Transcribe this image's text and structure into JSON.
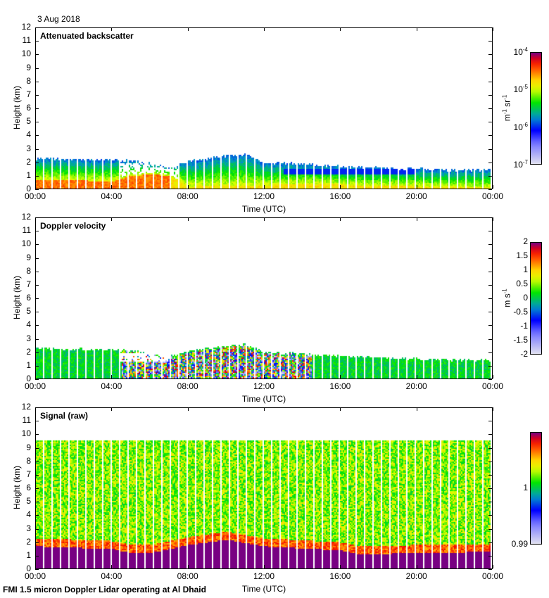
{
  "header": {
    "date": "3 Aug 2018"
  },
  "footer": {
    "caption": "FMI 1.5 micron Doppler Lidar operating at Al Dhaid"
  },
  "chart_data": [
    {
      "type": "heatmap",
      "title": "Attenuated backscatter",
      "xlabel": "Time (UTC)",
      "ylabel": "Height (km)",
      "xticks": [
        "00:00",
        "04:00",
        "08:00",
        "12:00",
        "16:00",
        "20:00",
        "00:00"
      ],
      "yticks": [
        "0",
        "1",
        "2",
        "3",
        "4",
        "5",
        "6",
        "7",
        "8",
        "9",
        "10",
        "11",
        "12"
      ],
      "ylim": [
        0,
        12
      ],
      "xlim_hours": [
        0,
        24
      ],
      "colorbar": {
        "unit_html": "m<sup>-1</sup> sr<sup>-1</sup>",
        "unit": "m-1 sr-1",
        "scale": "log",
        "range": [
          1e-07,
          0.0001
        ],
        "ticks": [
          "10-4",
          "10-5",
          "10-6",
          "10-7"
        ],
        "ticks_html": [
          "10<sup>-4</sup>",
          "10<sup>-5</sup>",
          "10<sup>-6</sup>",
          "10<sup>-7</sup>"
        ]
      },
      "layer_top_km": [
        [
          0,
          2.3
        ],
        [
          4,
          2.2
        ],
        [
          5,
          2.1
        ],
        [
          6,
          1.9
        ],
        [
          7,
          1.7
        ],
        [
          8,
          2.1
        ],
        [
          10,
          2.5
        ],
        [
          11,
          2.6
        ],
        [
          12,
          2.0
        ],
        [
          14,
          1.9
        ],
        [
          16,
          1.7
        ],
        [
          18,
          1.6
        ],
        [
          20,
          1.5
        ],
        [
          24,
          1.4
        ]
      ],
      "strong_layer_top_km": [
        [
          0,
          0.7
        ],
        [
          4,
          0.6
        ],
        [
          5,
          1.0
        ],
        [
          6,
          1.1
        ],
        [
          7,
          1.0
        ],
        [
          8,
          0.2
        ],
        [
          12,
          0.3
        ],
        [
          15,
          0.4
        ],
        [
          16.5,
          0.3
        ],
        [
          24,
          0.1
        ]
      ]
    },
    {
      "type": "heatmap",
      "title": "Doppler velocity",
      "xlabel": "Time (UTC)",
      "ylabel": "Height (km)",
      "xticks": [
        "00:00",
        "04:00",
        "08:00",
        "12:00",
        "16:00",
        "20:00",
        "00:00"
      ],
      "yticks": [
        "0",
        "1",
        "2",
        "3",
        "4",
        "5",
        "6",
        "7",
        "8",
        "9",
        "10",
        "11",
        "12"
      ],
      "ylim": [
        0,
        12
      ],
      "xlim_hours": [
        0,
        24
      ],
      "colorbar": {
        "unit_html": "m s<sup>-1</sup>",
        "unit": "m s-1",
        "scale": "linear",
        "range": [
          -2,
          2
        ],
        "ticks": [
          "2",
          "1.5",
          "1",
          "0.5",
          "0",
          "-0.5",
          "-1",
          "-1.5",
          "-2"
        ]
      },
      "layer_top_km": [
        [
          0,
          2.3
        ],
        [
          4,
          2.2
        ],
        [
          5,
          2.1
        ],
        [
          6,
          1.9
        ],
        [
          7,
          1.7
        ],
        [
          8,
          2.1
        ],
        [
          10,
          2.5
        ],
        [
          11,
          2.6
        ],
        [
          12,
          2.0
        ],
        [
          14,
          1.9
        ],
        [
          16,
          1.7
        ],
        [
          18,
          1.6
        ],
        [
          20,
          1.5
        ],
        [
          24,
          1.4
        ]
      ],
      "turbulent_hours": [
        4.5,
        14.5
      ]
    },
    {
      "type": "heatmap",
      "title": "Signal (raw)",
      "xlabel": "Time (UTC)",
      "ylabel": "Height (km)",
      "xticks": [
        "00:00",
        "04:00",
        "08:00",
        "12:00",
        "16:00",
        "20:00",
        "00:00"
      ],
      "yticks": [
        "0",
        "1",
        "2",
        "3",
        "4",
        "5",
        "6",
        "7",
        "8",
        "9",
        "10",
        "11",
        "12"
      ],
      "ylim": [
        0,
        12
      ],
      "xlim_hours": [
        0,
        24
      ],
      "colorbar": {
        "unit": "",
        "scale": "linear",
        "range": [
          0.99,
          1.01
        ],
        "ticks": [
          "1",
          "0.99"
        ]
      },
      "data_top_km": 9.6,
      "saturated_top_km": [
        [
          0,
          1.7
        ],
        [
          4,
          1.5
        ],
        [
          5,
          1.2
        ],
        [
          6,
          1.2
        ],
        [
          8,
          1.8
        ],
        [
          10,
          2.2
        ],
        [
          12,
          1.7
        ],
        [
          16,
          1.4
        ],
        [
          17,
          1.1
        ],
        [
          20,
          1.2
        ],
        [
          24,
          1.3
        ]
      ]
    }
  ]
}
